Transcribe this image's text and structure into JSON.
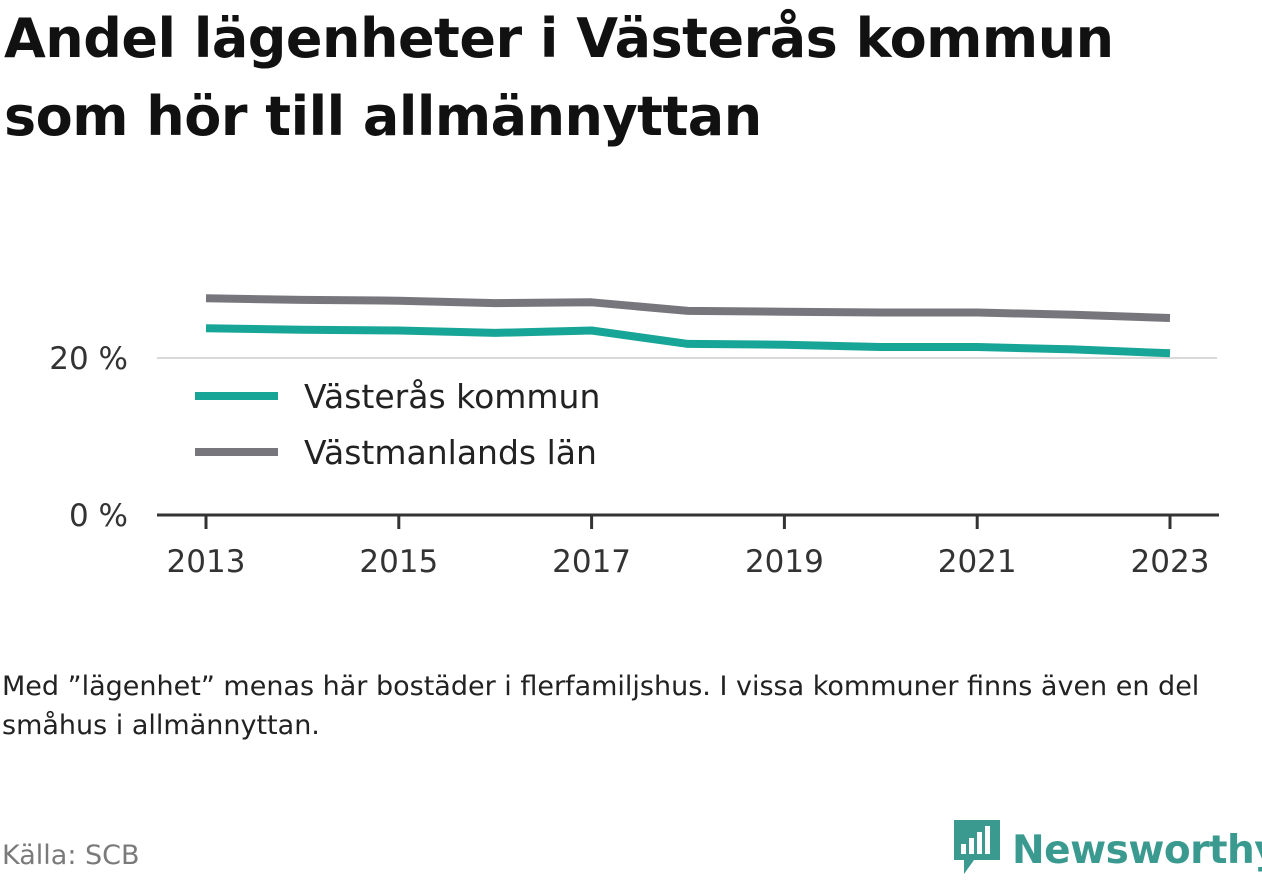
{
  "title": "Andel lägenheter i Västerås kommun som hör till allmännyttan",
  "note": "Med ”lägenhet” menas här bostäder i flerfamiljshus. I vissa kommuner finns även en del småhus i allmännyttan.",
  "source": "Källa: SCB",
  "brand": {
    "name": "Newsworthy",
    "icon": "newsworthy-logo-icon",
    "color": "#3a9a90"
  },
  "chart_data": {
    "type": "line",
    "x": [
      2013,
      2014,
      2015,
      2016,
      2017,
      2018,
      2019,
      2020,
      2021,
      2022,
      2023
    ],
    "xticks": [
      "2013",
      "2015",
      "2017",
      "2019",
      "2021",
      "2023"
    ],
    "yticks": [
      "0 %",
      "20 %"
    ],
    "ylim": [
      0,
      40
    ],
    "xlabel": "",
    "ylabel": "",
    "grid": true,
    "legend_position": "bottom-left",
    "series": [
      {
        "name": "Västerås kommun",
        "color": "#17a597",
        "values": [
          23.8,
          23.6,
          23.5,
          23.2,
          23.5,
          21.8,
          21.7,
          21.4,
          21.4,
          21.1,
          20.6
        ]
      },
      {
        "name": "Västmanlands län",
        "color": "#77767c",
        "values": [
          27.6,
          27.4,
          27.3,
          27.0,
          27.1,
          26.0,
          25.9,
          25.8,
          25.8,
          25.5,
          25.1
        ]
      }
    ]
  }
}
